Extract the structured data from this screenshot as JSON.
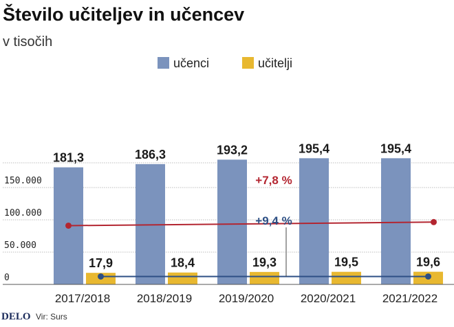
{
  "header": {
    "title": "Število učiteljev in učencev",
    "subtitle": "v tisočih"
  },
  "footer": {
    "logo": "DELO",
    "source": "Vir: Surs"
  },
  "colors": {
    "pupils": "#7b93bd",
    "teachers": "#e8b830",
    "pupils_trend": "#b32530",
    "teachers_trend": "#2d4f85",
    "grid": "#bdbdbd"
  },
  "chart_data": {
    "type": "bar",
    "categories": [
      "2017/2018",
      "2018/2019",
      "2019/2020",
      "2020/2021",
      "2021/2022"
    ],
    "series": [
      {
        "name": "učenci",
        "values": [
          181300,
          186300,
          193200,
          195400,
          195400
        ],
        "labels": [
          "181,3",
          "186,3",
          "193,2",
          "195,4",
          "195,4"
        ]
      },
      {
        "name": "učitelji",
        "values": [
          17900,
          18400,
          19300,
          19500,
          19600
        ],
        "labels": [
          "17,9",
          "18,4",
          "19,3",
          "19,5",
          "19,6"
        ]
      }
    ],
    "trends": [
      {
        "label": "+7,8 %",
        "from_category": "2017/2018",
        "to_category": "2021/2022",
        "from_value": 91000,
        "to_value": 96500
      },
      {
        "label": "+9,4 %",
        "from_category": "2017/2018",
        "to_category": "2021/2022",
        "from_value": 8000,
        "to_value": 8000
      }
    ],
    "yticks": [
      {
        "value": 0,
        "label": "0"
      },
      {
        "value": 50000,
        "label": "50.000"
      },
      {
        "value": 100000,
        "label": "100.000"
      },
      {
        "value": 150000,
        "label": "150.000"
      }
    ],
    "ylim": [
      0,
      200000
    ],
    "grid": true,
    "legend_position": "top-center"
  }
}
